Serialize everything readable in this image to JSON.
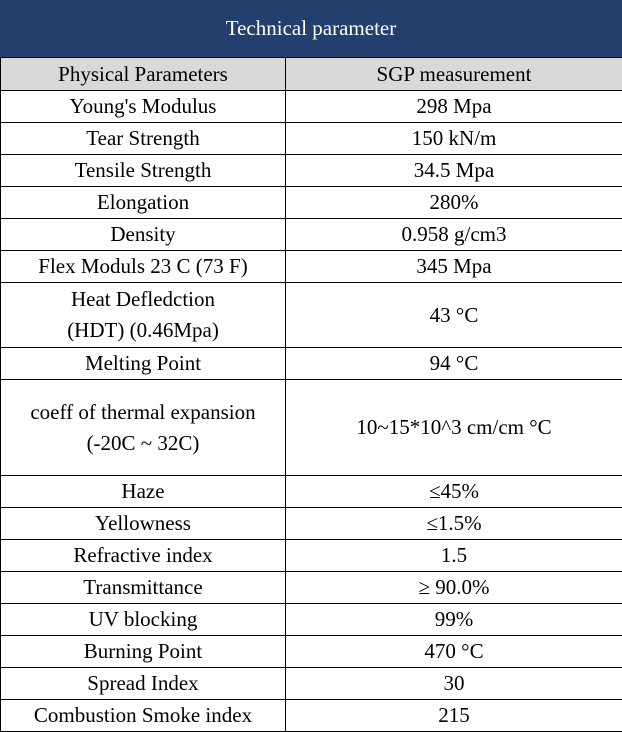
{
  "title": "Technical parameter",
  "headers": {
    "param": "Physical Parameters",
    "value": "SGP measurement"
  },
  "rows": [
    {
      "param": "Young's Modulus",
      "value": "298 Mpa"
    },
    {
      "param": "Tear Strength",
      "value": "150 kN/m"
    },
    {
      "param": "Tensile Strength",
      "value": "34.5 Mpa"
    },
    {
      "param": "Elongation",
      "value": "280%"
    },
    {
      "param": "Density",
      "value": "0.958 g/cm3"
    },
    {
      "param": "Flex Moduls 23 C (73 F)",
      "value": "345 Mpa"
    },
    {
      "param_line1": "Heat Defledction",
      "param_line2": "(HDT) (0.46Mpa)",
      "value": "43 °C"
    },
    {
      "param": "Melting Point",
      "value": "94 °C"
    },
    {
      "param_line1": "coeff of thermal expansion",
      "param_line2": "(-20C ~ 32C)",
      "value": "10~15*10^3 cm/cm °C"
    },
    {
      "param": "Haze",
      "value": "≤45%"
    },
    {
      "param": "Yellowness",
      "value": "≤1.5%"
    },
    {
      "param": "Refractive index",
      "value": "1.5"
    },
    {
      "param": "Transmittance",
      "value": "≥ 90.0%"
    },
    {
      "param": "UV blocking",
      "value": "99%"
    },
    {
      "param": "Burning Point",
      "value": "470 °C"
    },
    {
      "param": "Spread Index",
      "value": "30"
    },
    {
      "param": "Combustion Smoke index",
      "value": "215"
    }
  ]
}
